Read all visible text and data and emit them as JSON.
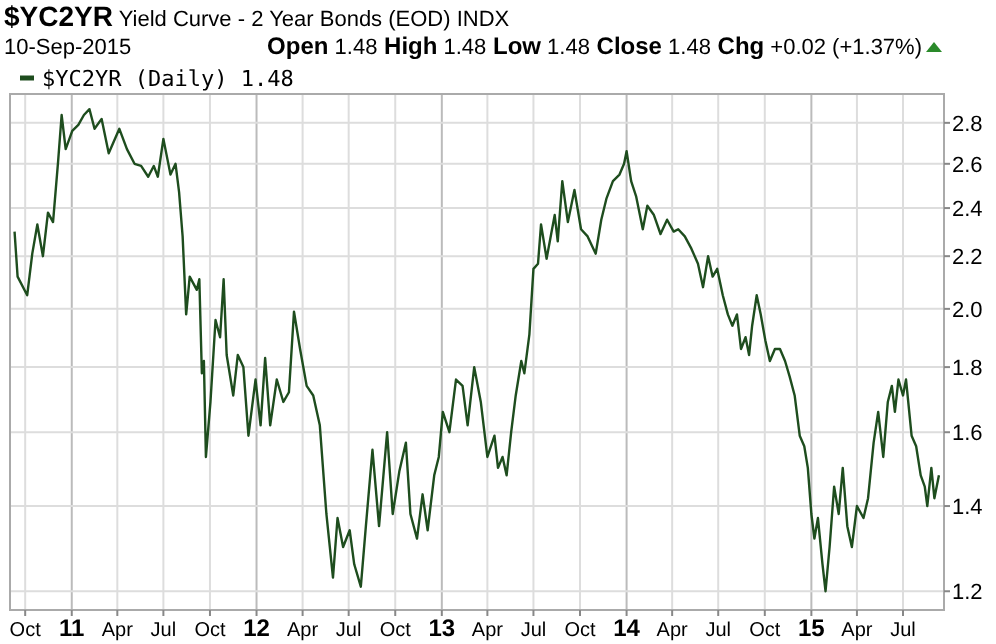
{
  "chart_data": {
    "type": "line",
    "title": "$YC2YR Yield Curve - 2 Year Bonds (EOD) INDX",
    "subtitle": "10-Sep-2015",
    "annotations": [
      "Open 1.48 High 1.48 Low 1.48 Close 1.48 Chg +0.02 (+1.37%)"
    ],
    "log": "y",
    "grid": true,
    "legend": "top left",
    "xlim": [
      "2010-09-01",
      "2015-09-20"
    ],
    "ylim": [
      1.16,
      2.95
    ],
    "yticks": [
      1.2,
      1.4,
      1.6,
      1.8,
      {
        "value": 2,
        "label": "2.0"
      },
      2.2,
      2.4,
      2.6,
      2.8
    ],
    "xticks": [
      {
        "value": "2010-10-01",
        "label": "Oct"
      },
      {
        "value": "2011-01-01",
        "label": "11"
      },
      {
        "value": "2011-04-01",
        "label": "Apr"
      },
      {
        "value": "2011-07-01",
        "label": "Jul"
      },
      {
        "value": "2011-10-01",
        "label": "Oct"
      },
      {
        "value": "2012-01-01",
        "label": "12"
      },
      {
        "value": "2012-04-01",
        "label": "Apr"
      },
      {
        "value": "2012-07-01",
        "label": "Jul"
      },
      {
        "value": "2012-10-01",
        "label": "Oct"
      },
      {
        "value": "2013-01-01",
        "label": "13"
      },
      {
        "value": "2013-04-01",
        "label": "Apr"
      },
      {
        "value": "2013-07-01",
        "label": "Jul"
      },
      {
        "value": "2013-10-01",
        "label": "Oct"
      },
      {
        "value": "2014-01-01",
        "label": "14"
      },
      {
        "value": "2014-04-01",
        "label": "Apr"
      },
      {
        "value": "2014-07-01",
        "label": "Jul"
      },
      {
        "value": "2014-10-01",
        "label": "Oct"
      },
      {
        "value": "2015-01-01",
        "label": "15"
      },
      {
        "value": "2015-04-01",
        "label": "Apr"
      },
      {
        "value": "2015-07-01",
        "label": "Jul"
      }
    ],
    "x": [
      "2010-09-10",
      "2010-09-16",
      "2010-10-05",
      "2010-10-15",
      "2010-10-25",
      "2010-11-05",
      "2010-11-15",
      "2010-11-25",
      "2010-12-05",
      "2010-12-12",
      "2010-12-20",
      "2011-01-02",
      "2011-01-14",
      "2011-01-25",
      "2011-02-05",
      "2011-02-15",
      "2011-03-01",
      "2011-03-15",
      "2011-04-05",
      "2011-04-20",
      "2011-05-05",
      "2011-05-18",
      "2011-06-01",
      "2011-06-12",
      "2011-06-20",
      "2011-07-01",
      "2011-07-15",
      "2011-07-25",
      "2011-08-01",
      "2011-08-08",
      "2011-08-15",
      "2011-08-22",
      "2011-09-05",
      "2011-09-10",
      "2011-09-15",
      "2011-09-19",
      "2011-09-23",
      "2011-10-02",
      "2011-10-12",
      "2011-10-21",
      "2011-10-28",
      "2011-11-03",
      "2011-11-16",
      "2011-11-25",
      "2011-12-06",
      "2011-12-16",
      "2011-12-30",
      "2012-01-09",
      "2012-01-18",
      "2012-01-28",
      "2012-02-10",
      "2012-02-23",
      "2012-03-05",
      "2012-03-15",
      "2012-03-27",
      "2012-04-09",
      "2012-04-22",
      "2012-05-05",
      "2012-05-18",
      "2012-05-31",
      "2012-06-09",
      "2012-06-20",
      "2012-07-03",
      "2012-07-12",
      "2012-07-25",
      "2012-08-04",
      "2012-08-17",
      "2012-08-30",
      "2012-09-15",
      "2012-09-26",
      "2012-10-09",
      "2012-10-22",
      "2012-10-31",
      "2012-11-13",
      "2012-11-24",
      "2012-12-04",
      "2012-12-17",
      "2012-12-26",
      "2013-01-03",
      "2013-01-16",
      "2013-01-29",
      "2013-02-11",
      "2013-02-21",
      "2013-03-06",
      "2013-03-19",
      "2013-04-01",
      "2013-04-15",
      "2013-04-22",
      "2013-05-01",
      "2013-05-09",
      "2013-05-18",
      "2013-05-27",
      "2013-06-07",
      "2013-06-13",
      "2013-06-23",
      "2013-07-01",
      "2013-07-10",
      "2013-07-16",
      "2013-07-27",
      "2013-08-05",
      "2013-08-12",
      "2013-08-18",
      "2013-08-27",
      "2013-09-07",
      "2013-09-20",
      "2013-10-03",
      "2013-10-16",
      "2013-11-01",
      "2013-11-12",
      "2013-11-22",
      "2013-12-05",
      "2013-12-18",
      "2013-12-27",
      "2014-01-01",
      "2014-01-10",
      "2014-01-20",
      "2014-02-02",
      "2014-02-11",
      "2014-02-24",
      "2014-03-09",
      "2014-03-22",
      "2014-04-04",
      "2014-04-13",
      "2014-04-26",
      "2014-05-09",
      "2014-05-22",
      "2014-06-01",
      "2014-06-11",
      "2014-06-20",
      "2014-06-29",
      "2014-07-10",
      "2014-07-20",
      "2014-07-29",
      "2014-08-07",
      "2014-08-15",
      "2014-08-24",
      "2014-08-31",
      "2014-09-06",
      "2014-09-15",
      "2014-09-23",
      "2014-10-02",
      "2014-10-11",
      "2014-10-21",
      "2014-10-31",
      "2014-11-10",
      "2014-11-19",
      "2014-11-29",
      "2014-12-09",
      "2014-12-18",
      "2014-12-25",
      "2015-01-01",
      "2015-01-07",
      "2015-01-14",
      "2015-01-23",
      "2015-01-29",
      "2015-02-06",
      "2015-02-15",
      "2015-02-24",
      "2015-03-04",
      "2015-03-13",
      "2015-03-22",
      "2015-04-01",
      "2015-04-14",
      "2015-04-23",
      "2015-05-04",
      "2015-05-13",
      "2015-05-23",
      "2015-06-01",
      "2015-06-09",
      "2015-06-15",
      "2015-06-22",
      "2015-07-01",
      "2015-07-07",
      "2015-07-18",
      "2015-07-27",
      "2015-08-05",
      "2015-08-13",
      "2015-08-18",
      "2015-08-26",
      "2015-09-01",
      "2015-09-10"
    ],
    "series": [
      {
        "name": "$YC2YR (Daily) 1.48",
        "color": "#1e4d1e",
        "values": [
          2.3,
          2.12,
          2.05,
          2.21,
          2.33,
          2.2,
          2.38,
          2.34,
          2.61,
          2.84,
          2.67,
          2.76,
          2.79,
          2.84,
          2.87,
          2.77,
          2.82,
          2.65,
          2.77,
          2.67,
          2.6,
          2.59,
          2.54,
          2.59,
          2.54,
          2.72,
          2.55,
          2.6,
          2.47,
          2.28,
          1.98,
          2.12,
          2.07,
          2.11,
          1.78,
          1.82,
          1.53,
          1.69,
          1.96,
          1.9,
          2.11,
          1.84,
          1.71,
          1.84,
          1.8,
          1.59,
          1.76,
          1.62,
          1.83,
          1.62,
          1.76,
          1.69,
          1.72,
          1.99,
          1.86,
          1.74,
          1.71,
          1.62,
          1.38,
          1.23,
          1.37,
          1.3,
          1.34,
          1.26,
          1.21,
          1.35,
          1.55,
          1.35,
          1.6,
          1.38,
          1.49,
          1.57,
          1.38,
          1.32,
          1.43,
          1.34,
          1.48,
          1.53,
          1.66,
          1.6,
          1.76,
          1.74,
          1.62,
          1.8,
          1.69,
          1.53,
          1.59,
          1.5,
          1.53,
          1.48,
          1.6,
          1.71,
          1.82,
          1.78,
          1.91,
          2.15,
          2.17,
          2.33,
          2.19,
          2.29,
          2.37,
          2.26,
          2.52,
          2.34,
          2.48,
          2.31,
          2.28,
          2.21,
          2.35,
          2.44,
          2.52,
          2.55,
          2.6,
          2.66,
          2.52,
          2.45,
          2.31,
          2.41,
          2.37,
          2.29,
          2.35,
          2.3,
          2.31,
          2.28,
          2.23,
          2.17,
          2.08,
          2.2,
          2.12,
          2.15,
          2.05,
          1.98,
          1.94,
          1.98,
          1.86,
          1.9,
          1.84,
          1.94,
          2.05,
          1.98,
          1.89,
          1.82,
          1.86,
          1.86,
          1.82,
          1.77,
          1.71,
          1.59,
          1.56,
          1.5,
          1.38,
          1.32,
          1.37,
          1.26,
          1.2,
          1.3,
          1.45,
          1.38,
          1.5,
          1.35,
          1.3,
          1.4,
          1.37,
          1.42,
          1.57,
          1.66,
          1.53,
          1.69,
          1.74,
          1.66,
          1.76,
          1.71,
          1.76,
          1.59,
          1.56,
          1.48,
          1.45,
          1.4,
          1.5,
          1.42,
          1.48
        ]
      }
    ]
  }
}
